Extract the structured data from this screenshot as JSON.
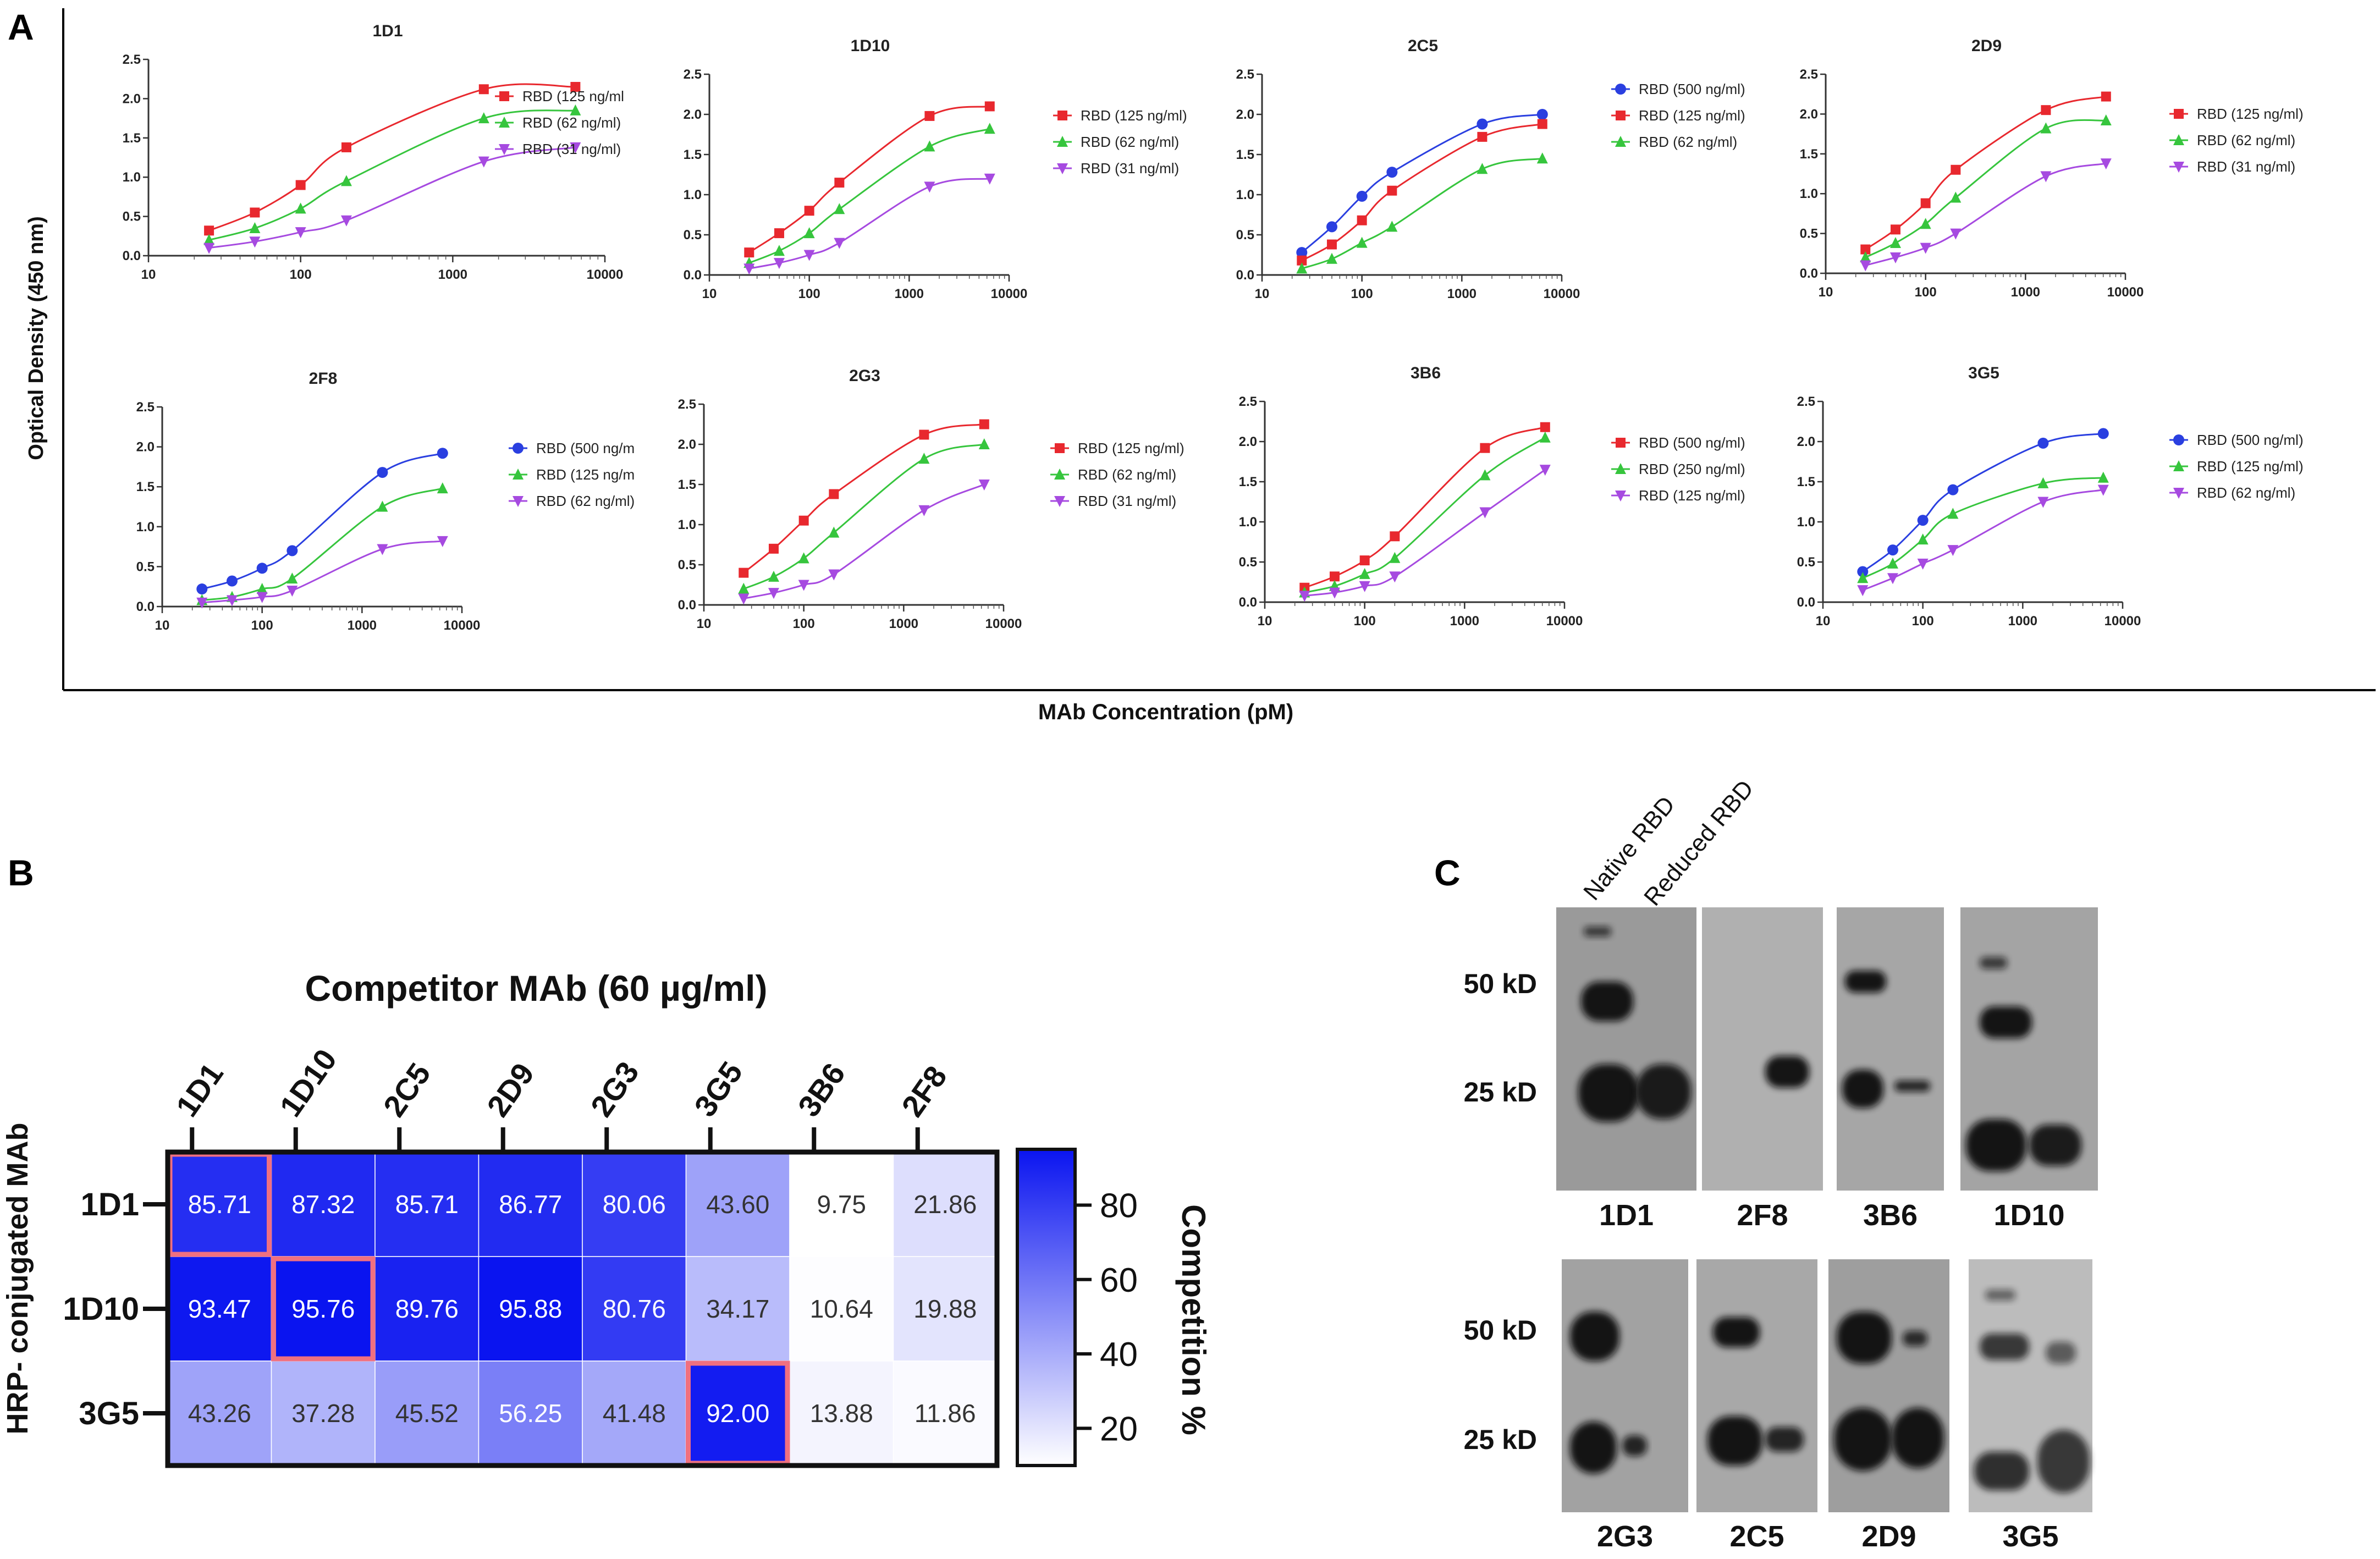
{
  "panels": {
    "a_letter": "A",
    "b_letter": "B",
    "c_letter": "C"
  },
  "panel_a": {
    "ylabel": "Optical Density (450 nm)",
    "xlabel": "MAb Concentration (pM)"
  },
  "panel_b": {
    "xlabel": "Competitor MAb (60 µg/ml)",
    "ylabel": "HRP- conjugated MAb",
    "colorbar_label": "Competition %"
  },
  "panel_c": {
    "lane_labels": [
      "Native RBD",
      "Reduced RBD"
    ],
    "mw_labels_top": [
      "50 kD",
      "25 kD"
    ],
    "mw_labels_bottom": [
      "50 kD",
      "25 kD"
    ],
    "blots_top": [
      "1D1",
      "2F8",
      "3B6",
      "1D10"
    ],
    "blots_bottom": [
      "2G3",
      "2C5",
      "2D9",
      "3G5"
    ]
  },
  "colors": {
    "red": "#e8282e",
    "green": "#36c53d",
    "purple": "#a64ae0",
    "blue": "#2a3fe0",
    "heat_max": "#0a14f0",
    "highlight": "#f07080"
  },
  "chart_data": [
    {
      "type": "line",
      "title": "1D1",
      "xscale": "log",
      "xlim": [
        10,
        10000
      ],
      "ylim": [
        0,
        2.5
      ],
      "xticks": [
        "10",
        "100",
        "1000",
        "10000"
      ],
      "yticks": [
        "0.0",
        "0.5",
        "1.0",
        "1.5",
        "2.0",
        "2.5"
      ],
      "x": [
        25,
        50,
        100,
        200,
        1600,
        6400
      ],
      "series": [
        {
          "name": "RBD (125 ng/ml",
          "color": "red",
          "marker": "square",
          "values": [
            0.32,
            0.55,
            0.9,
            1.38,
            2.12,
            2.15
          ]
        },
        {
          "name": "RBD (62 ng/ml)",
          "color": "green",
          "marker": "triangle",
          "values": [
            0.2,
            0.35,
            0.6,
            0.95,
            1.75,
            1.85
          ]
        },
        {
          "name": "RBD (31 ng/ml)",
          "color": "purple",
          "marker": "tri-down",
          "values": [
            0.1,
            0.18,
            0.3,
            0.45,
            1.2,
            1.38
          ]
        }
      ]
    },
    {
      "type": "line",
      "title": "1D10",
      "xscale": "log",
      "xlim": [
        10,
        10000
      ],
      "ylim": [
        0,
        2.5
      ],
      "xticks": [
        "10",
        "100",
        "1000",
        "10000"
      ],
      "yticks": [
        "0.0",
        "0.5",
        "1.0",
        "1.5",
        "2.0",
        "2.5"
      ],
      "x": [
        25,
        50,
        100,
        200,
        1600,
        6400
      ],
      "series": [
        {
          "name": "RBD (125 ng/ml)",
          "color": "red",
          "marker": "square",
          "values": [
            0.28,
            0.52,
            0.8,
            1.15,
            1.98,
            2.1
          ]
        },
        {
          "name": "RBD (62 ng/ml)",
          "color": "green",
          "marker": "triangle",
          "values": [
            0.15,
            0.3,
            0.52,
            0.82,
            1.6,
            1.82
          ]
        },
        {
          "name": "RBD (31 ng/ml)",
          "color": "purple",
          "marker": "tri-down",
          "values": [
            0.08,
            0.15,
            0.25,
            0.4,
            1.1,
            1.2
          ]
        }
      ]
    },
    {
      "type": "line",
      "title": "2C5",
      "xscale": "log",
      "xlim": [
        10,
        10000
      ],
      "ylim": [
        0,
        2.5
      ],
      "xticks": [
        "10",
        "100",
        "1000",
        "10000"
      ],
      "yticks": [
        "0.0",
        "0.5",
        "1.0",
        "1.5",
        "2.0",
        "2.5"
      ],
      "x": [
        25,
        50,
        100,
        200,
        1600,
        6400
      ],
      "series": [
        {
          "name": "RBD (500 ng/ml)",
          "color": "blue",
          "marker": "circle",
          "values": [
            0.28,
            0.6,
            0.98,
            1.28,
            1.88,
            2.0
          ]
        },
        {
          "name": "RBD (125 ng/ml)",
          "color": "red",
          "marker": "square",
          "values": [
            0.18,
            0.38,
            0.68,
            1.05,
            1.72,
            1.88
          ]
        },
        {
          "name": "RBD (62 ng/ml)",
          "color": "green",
          "marker": "triangle",
          "values": [
            0.08,
            0.2,
            0.4,
            0.6,
            1.32,
            1.45
          ]
        }
      ]
    },
    {
      "type": "line",
      "title": "2D9",
      "xscale": "log",
      "xlim": [
        10,
        10000
      ],
      "ylim": [
        0,
        2.5
      ],
      "xticks": [
        "10",
        "100",
        "1000",
        "10000"
      ],
      "yticks": [
        "0.0",
        "0.5",
        "1.0",
        "1.5",
        "2.0",
        "2.5"
      ],
      "x": [
        25,
        50,
        100,
        200,
        1600,
        6400
      ],
      "series": [
        {
          "name": "RBD (125 ng/ml)",
          "color": "red",
          "marker": "square",
          "values": [
            0.3,
            0.55,
            0.88,
            1.3,
            2.05,
            2.22
          ]
        },
        {
          "name": "RBD (62 ng/ml)",
          "color": "green",
          "marker": "triangle",
          "values": [
            0.2,
            0.38,
            0.62,
            0.95,
            1.82,
            1.92
          ]
        },
        {
          "name": "RBD (31 ng/ml)",
          "color": "purple",
          "marker": "tri-down",
          "values": [
            0.1,
            0.2,
            0.32,
            0.5,
            1.22,
            1.38
          ]
        }
      ]
    },
    {
      "type": "line",
      "title": "2F8",
      "xscale": "log",
      "xlim": [
        10,
        10000
      ],
      "ylim": [
        0,
        2.5
      ],
      "xticks": [
        "10",
        "100",
        "1000",
        "10000"
      ],
      "yticks": [
        "0.0",
        "0.5",
        "1.0",
        "1.5",
        "2.0",
        "2.5"
      ],
      "x": [
        25,
        50,
        100,
        200,
        1600,
        6400
      ],
      "series": [
        {
          "name": "RBD (500 ng/m",
          "color": "blue",
          "marker": "circle",
          "values": [
            0.22,
            0.32,
            0.48,
            0.7,
            1.68,
            1.92
          ]
        },
        {
          "name": "RBD (125 ng/m",
          "color": "green",
          "marker": "triangle",
          "values": [
            0.08,
            0.12,
            0.22,
            0.35,
            1.25,
            1.48
          ]
        },
        {
          "name": "RBD (62 ng/ml)",
          "color": "purple",
          "marker": "tri-down",
          "values": [
            0.05,
            0.08,
            0.12,
            0.2,
            0.72,
            0.82
          ]
        }
      ]
    },
    {
      "type": "line",
      "title": "2G3",
      "xscale": "log",
      "xlim": [
        10,
        10000
      ],
      "ylim": [
        0,
        2.5
      ],
      "xticks": [
        "10",
        "100",
        "1000",
        "10000"
      ],
      "yticks": [
        "0.0",
        "0.5",
        "1.0",
        "1.5",
        "2.0",
        "2.5"
      ],
      "x": [
        25,
        50,
        100,
        200,
        1600,
        6400
      ],
      "series": [
        {
          "name": "RBD (125 ng/ml)",
          "color": "red",
          "marker": "square",
          "values": [
            0.4,
            0.7,
            1.05,
            1.38,
            2.12,
            2.25
          ]
        },
        {
          "name": "RBD (62 ng/ml)",
          "color": "green",
          "marker": "triangle",
          "values": [
            0.2,
            0.35,
            0.58,
            0.9,
            1.82,
            2.0
          ]
        },
        {
          "name": "RBD (31 ng/ml)",
          "color": "purple",
          "marker": "tri-down",
          "values": [
            0.08,
            0.15,
            0.25,
            0.38,
            1.18,
            1.5
          ]
        }
      ]
    },
    {
      "type": "line",
      "title": "3B6",
      "xscale": "log",
      "xlim": [
        10,
        10000
      ],
      "ylim": [
        0,
        2.5
      ],
      "xticks": [
        "10",
        "100",
        "1000",
        "10000"
      ],
      "yticks": [
        "0.0",
        "0.5",
        "1.0",
        "1.5",
        "2.0",
        "2.5"
      ],
      "x": [
        25,
        50,
        100,
        200,
        1600,
        6400
      ],
      "series": [
        {
          "name": "RBD (500 ng/ml)",
          "color": "red",
          "marker": "square",
          "values": [
            0.18,
            0.32,
            0.52,
            0.82,
            1.92,
            2.18
          ]
        },
        {
          "name": "RBD (250 ng/ml)",
          "color": "green",
          "marker": "triangle",
          "values": [
            0.12,
            0.2,
            0.35,
            0.55,
            1.58,
            2.05
          ]
        },
        {
          "name": "RBD (125 ng/ml)",
          "color": "purple",
          "marker": "tri-down",
          "values": [
            0.08,
            0.12,
            0.2,
            0.32,
            1.12,
            1.65
          ]
        }
      ]
    },
    {
      "type": "line",
      "title": "3G5",
      "xscale": "log",
      "xlim": [
        10,
        10000
      ],
      "ylim": [
        0,
        2.5
      ],
      "xticks": [
        "10",
        "100",
        "1000",
        "10000"
      ],
      "yticks": [
        "0.0",
        "0.5",
        "1.0",
        "1.5",
        "2.0",
        "2.5"
      ],
      "x": [
        25,
        50,
        100,
        200,
        1600,
        6400
      ],
      "series": [
        {
          "name": "RBD (500 ng/ml)",
          "color": "blue",
          "marker": "circle",
          "values": [
            0.38,
            0.65,
            1.02,
            1.4,
            1.98,
            2.1
          ]
        },
        {
          "name": "RBD (125 ng/ml)",
          "color": "green",
          "marker": "triangle",
          "values": [
            0.3,
            0.48,
            0.78,
            1.1,
            1.48,
            1.55
          ]
        },
        {
          "name": "RBD (62 ng/ml)",
          "color": "purple",
          "marker": "tri-down",
          "values": [
            0.15,
            0.3,
            0.48,
            0.65,
            1.25,
            1.4
          ]
        }
      ]
    },
    {
      "type": "heatmap",
      "title": "Competitor MAb (60 µg/ml)",
      "xlabel": "Competitor MAb (60 µg/ml)",
      "ylabel": "HRP- conjugated MAb",
      "x_categories": [
        "1D1",
        "1D10",
        "2C5",
        "2D9",
        "2G3",
        "3G5",
        "3B6",
        "2F8"
      ],
      "y_categories": [
        "1D1",
        "1D10",
        "3G5"
      ],
      "values": [
        [
          85.71,
          87.32,
          85.71,
          86.77,
          80.06,
          43.6,
          9.75,
          21.86
        ],
        [
          93.47,
          95.76,
          89.76,
          95.88,
          80.76,
          34.17,
          10.64,
          19.88
        ],
        [
          43.26,
          37.28,
          45.52,
          56.25,
          41.48,
          92.0,
          13.88,
          11.86
        ]
      ],
      "labels": [
        [
          "85.71",
          "87.32",
          "85.71",
          "86.77",
          "80.06",
          "43.60",
          "9.75",
          "21.86"
        ],
        [
          "93.47",
          "95.76",
          "89.76",
          "95.88",
          "80.76",
          "34.17",
          "10.64",
          "19.88"
        ],
        [
          "43.26",
          "37.28",
          "45.52",
          "56.25",
          "41.48",
          "92.00",
          "13.88",
          "11.86"
        ]
      ],
      "highlighted": [
        [
          0,
          0
        ],
        [
          1,
          1
        ],
        [
          2,
          5
        ]
      ],
      "colorbar": {
        "label": "Competition %",
        "min": 10,
        "max": 95,
        "ticks": [
          "80",
          "60",
          "40",
          "20"
        ],
        "tick_values": [
          80,
          60,
          40,
          20
        ]
      }
    }
  ]
}
